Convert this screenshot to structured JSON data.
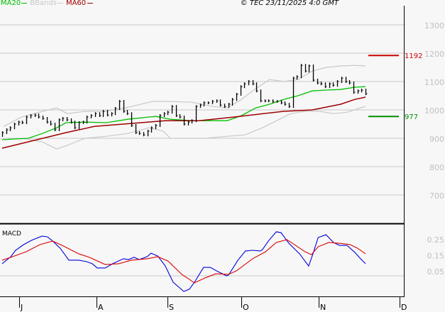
{
  "legend": {
    "ma20": {
      "label": "MA20",
      "color": "#00c000"
    },
    "bbands": {
      "label": "BBands",
      "color": "#c8c8c8"
    },
    "ma60": {
      "label": "MA60",
      "color": "#a00000"
    }
  },
  "copyright": "© TEC 23/11/2025 4:0 GMT",
  "chart_data": [
    {
      "type": "ohlc",
      "ylim": [
        650,
        1350
      ],
      "yticks": [
        1300,
        1200,
        1100,
        1000,
        900,
        800,
        700
      ],
      "grid": true,
      "xticks": [
        "J",
        "A",
        "S",
        "O",
        "N",
        "D"
      ],
      "close": [
        920,
        930,
        937,
        950,
        957,
        955,
        975,
        980,
        982,
        975,
        970,
        957,
        950,
        930,
        965,
        970,
        965,
        957,
        937,
        955,
        957,
        975,
        980,
        987,
        980,
        995,
        982,
        987,
        1005,
        1030,
        995,
        987,
        945,
        920,
        917,
        912,
        925,
        937,
        945,
        980,
        987,
        992,
        1012,
        980,
        975,
        950,
        957,
        962,
        1012,
        1017,
        1025,
        1025,
        1030,
        1032,
        1017,
        1012,
        1020,
        1037,
        1055,
        1082,
        1092,
        1100,
        1092,
        1067,
        1032,
        1032,
        1032,
        1030,
        1030,
        1025,
        1020,
        1012,
        1112,
        1117,
        1157,
        1137,
        1155,
        1105,
        1095,
        1092,
        1082,
        1092,
        1087,
        1100,
        1112,
        1100,
        1095,
        1062,
        1067,
        1070,
        1057
      ],
      "series": [
        {
          "name": "MA20",
          "color": "#00c000",
          "points": [
            [
              0,
              895
            ],
            [
              6.6,
              900
            ],
            [
              10.2,
              917
            ],
            [
              13.8,
              937
            ],
            [
              16.2,
              955
            ],
            [
              21,
              957
            ],
            [
              26.4,
              955
            ],
            [
              31.8,
              967
            ],
            [
              37.2,
              975
            ],
            [
              39,
              977
            ],
            [
              42.6,
              967
            ],
            [
              48,
              962
            ],
            [
              57,
              962
            ],
            [
              60.6,
              980
            ],
            [
              64.2,
              1007
            ],
            [
              67.7,
              1020
            ],
            [
              71.3,
              1037
            ],
            [
              74.9,
              1050
            ],
            [
              78.5,
              1067
            ],
            [
              82.1,
              1070
            ],
            [
              85.7,
              1072
            ],
            [
              89.3,
              1080
            ],
            [
              92,
              1082
            ]
          ]
        },
        {
          "name": "MA60",
          "color": "#a00000",
          "points": [
            [
              0,
              865
            ],
            [
              16.2,
              920
            ],
            [
              23.4,
              942
            ],
            [
              41.3,
              962
            ],
            [
              49.8,
              962
            ],
            [
              58.8,
              975
            ],
            [
              71.3,
              995
            ],
            [
              78.5,
              1000
            ],
            [
              85.7,
              1020
            ],
            [
              89.3,
              1037
            ],
            [
              92,
              1045
            ]
          ]
        },
        {
          "name": "BBands",
          "color": "#c8c8c8",
          "upper": [
            [
              0.4,
              942
            ],
            [
              4.9,
              975
            ],
            [
              10.2,
              995
            ],
            [
              13.8,
              1007
            ],
            [
              16.5,
              987
            ],
            [
              21,
              995
            ],
            [
              26.4,
              995
            ],
            [
              32.7,
              1012
            ],
            [
              38.1,
              1030
            ],
            [
              42.6,
              1030
            ],
            [
              48,
              1027
            ],
            [
              53.4,
              1012
            ],
            [
              57,
              1007
            ],
            [
              60.6,
              1037
            ],
            [
              64.2,
              1075
            ],
            [
              67.7,
              1107
            ],
            [
              71.3,
              1100
            ],
            [
              74.9,
              1107
            ],
            [
              78.5,
              1137
            ],
            [
              82.1,
              1150
            ],
            [
              85.7,
              1155
            ],
            [
              89.3,
              1157
            ],
            [
              92,
              1155
            ]
          ],
          "lower": [
            [
              0.4,
              895
            ],
            [
              4.9,
              900
            ],
            [
              10.2,
              887
            ],
            [
              13.8,
              862
            ],
            [
              16.5,
              875
            ],
            [
              21,
              900
            ],
            [
              26.4,
              907
            ],
            [
              31.8,
              917
            ],
            [
              37.2,
              937
            ],
            [
              40.8,
              925
            ],
            [
              42.6,
              900
            ],
            [
              46.2,
              900
            ],
            [
              51.6,
              900
            ],
            [
              57,
              907
            ],
            [
              61.5,
              912
            ],
            [
              65.9,
              937
            ],
            [
              69.5,
              962
            ],
            [
              73.1,
              987
            ],
            [
              76.7,
              995
            ],
            [
              80.3,
              995
            ],
            [
              83.9,
              987
            ],
            [
              87.5,
              992
            ],
            [
              90.2,
              1005
            ],
            [
              92,
              1012
            ]
          ]
        }
      ],
      "levels": [
        {
          "label": "1192",
          "value": 1192,
          "color": "#cc0000"
        },
        {
          "label": "977",
          "value": 977,
          "color": "#009000"
        }
      ]
    },
    {
      "type": "line",
      "title": "MACD",
      "yticks": [
        0.25,
        0.15,
        0.05
      ],
      "grid_value": 0.05,
      "series": [
        {
          "color": "#0000dd",
          "points": [
            [
              0,
              0.126
            ],
            [
              2.2,
              0.17
            ],
            [
              3.4,
              0.21
            ],
            [
              5.4,
              0.245
            ],
            [
              7.4,
              0.272
            ],
            [
              10.1,
              0.299
            ],
            [
              11.5,
              0.294
            ],
            [
              12.8,
              0.268
            ],
            [
              14.7,
              0.223
            ],
            [
              16.9,
              0.148
            ],
            [
              19.4,
              0.148
            ],
            [
              21.4,
              0.139
            ],
            [
              22.8,
              0.126
            ],
            [
              24.1,
              0.099
            ],
            [
              26.1,
              0.099
            ],
            [
              28,
              0.126
            ],
            [
              30.7,
              0.157
            ],
            [
              32,
              0.152
            ],
            [
              33.4,
              0.166
            ],
            [
              34.7,
              0.152
            ],
            [
              36.7,
              0.17
            ],
            [
              37.7,
              0.192
            ],
            [
              39.4,
              0.174
            ],
            [
              41.3,
              0.112
            ],
            [
              43.3,
              0.01
            ],
            [
              46,
              -0.048
            ],
            [
              47.4,
              -0.034
            ],
            [
              48.7,
              0.01
            ],
            [
              51,
              0.103
            ],
            [
              52.7,
              0.103
            ],
            [
              54.6,
              0.077
            ],
            [
              56.8,
              0.05
            ],
            [
              57.3,
              0.054
            ],
            [
              59.7,
              0.148
            ],
            [
              61.6,
              0.206
            ],
            [
              63.4,
              0.21
            ],
            [
              65.4,
              0.206
            ],
            [
              65.9,
              0.214
            ],
            [
              67.4,
              0.268
            ],
            [
              69.4,
              0.326
            ],
            [
              70.6,
              0.321
            ],
            [
              72.6,
              0.254
            ],
            [
              75.3,
              0.188
            ],
            [
              77.6,
              0.112
            ],
            [
              78.7,
              0.188
            ],
            [
              80,
              0.29
            ],
            [
              82,
              0.308
            ],
            [
              83.9,
              0.259
            ],
            [
              85.4,
              0.241
            ],
            [
              87.3,
              0.241
            ],
            [
              89.3,
              0.197
            ],
            [
              90.6,
              0.161
            ],
            [
              92,
              0.126
            ]
          ]
        },
        {
          "color": "#dd0000",
          "points": [
            [
              0,
              0.148
            ],
            [
              2.2,
              0.166
            ],
            [
              6.1,
              0.201
            ],
            [
              9.5,
              0.245
            ],
            [
              12.8,
              0.268
            ],
            [
              15.5,
              0.237
            ],
            [
              19.4,
              0.188
            ],
            [
              22.1,
              0.166
            ],
            [
              26.1,
              0.121
            ],
            [
              29.5,
              0.126
            ],
            [
              32.7,
              0.148
            ],
            [
              36.7,
              0.157
            ],
            [
              39.4,
              0.17
            ],
            [
              42,
              0.143
            ],
            [
              45.5,
              0.059
            ],
            [
              48.7,
              0.006
            ],
            [
              51.4,
              0.037
            ],
            [
              54.1,
              0.063
            ],
            [
              57.3,
              0.059
            ],
            [
              59.3,
              0.081
            ],
            [
              63.4,
              0.157
            ],
            [
              66.7,
              0.201
            ],
            [
              69.4,
              0.259
            ],
            [
              72.1,
              0.277
            ],
            [
              74,
              0.246
            ],
            [
              76.7,
              0.201
            ],
            [
              78.3,
              0.183
            ],
            [
              80,
              0.232
            ],
            [
              82.7,
              0.259
            ],
            [
              85.4,
              0.254
            ],
            [
              88.1,
              0.246
            ],
            [
              90,
              0.223
            ],
            [
              92,
              0.188
            ]
          ]
        }
      ]
    }
  ]
}
